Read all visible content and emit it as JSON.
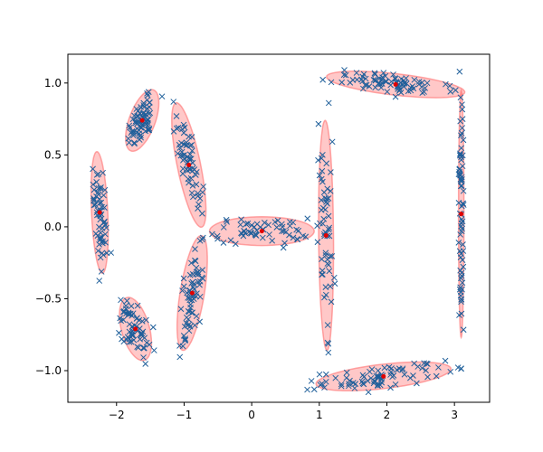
{
  "chart_data": {
    "type": "scatter",
    "title": "",
    "xlabel": "",
    "ylabel": "",
    "xlim": [
      -2.72,
      3.52
    ],
    "ylim": [
      -1.22,
      1.2
    ],
    "x_ticks": [
      -2,
      -1,
      0,
      1,
      2,
      3
    ],
    "x_tick_labels": [
      "−2",
      "−1",
      "0",
      "1",
      "2",
      "3"
    ],
    "y_ticks": [
      -1.0,
      -0.5,
      0.0,
      0.5,
      1.0
    ],
    "y_tick_labels": [
      "−1.0",
      "−0.5",
      "0.0",
      "0.5",
      "1.0"
    ],
    "grid": false,
    "legend": "none",
    "point_color": "#1f5f9a",
    "ellipse_fill": "#ff9a9a",
    "ellipse_edge": "#ff6f6f",
    "center_color": "#e00000",
    "clusters": [
      {
        "center": [
          -1.62,
          0.74
        ],
        "width": 0.58,
        "height": 0.3,
        "angle": 38,
        "n": 70
      },
      {
        "center": [
          -0.93,
          0.43
        ],
        "width": 0.95,
        "height": 0.32,
        "angle": 116,
        "n": 65
      },
      {
        "center": [
          -2.25,
          0.1
        ],
        "width": 0.85,
        "height": 0.24,
        "angle": 96,
        "n": 60
      },
      {
        "center": [
          -1.72,
          -0.71
        ],
        "width": 0.55,
        "height": 0.34,
        "angle": 140,
        "n": 65
      },
      {
        "center": [
          -0.88,
          -0.46
        ],
        "width": 0.85,
        "height": 0.34,
        "angle": 68,
        "n": 65
      },
      {
        "center": [
          0.15,
          -0.03
        ],
        "width": 1.55,
        "height": 0.2,
        "angle": 0,
        "n": 60
      },
      {
        "center": [
          1.1,
          -0.06
        ],
        "width": 1.6,
        "height": 0.22,
        "angle": 91,
        "n": 60
      },
      {
        "center": [
          2.13,
          0.99
        ],
        "width": 2.05,
        "height": 0.15,
        "angle": -3,
        "n": 80
      },
      {
        "center": [
          3.1,
          0.09
        ],
        "width": 1.72,
        "height": 0.08,
        "angle": 90,
        "n": 70
      },
      {
        "center": [
          1.95,
          -1.04
        ],
        "width": 2.0,
        "height": 0.17,
        "angle": 3,
        "n": 80
      }
    ]
  }
}
